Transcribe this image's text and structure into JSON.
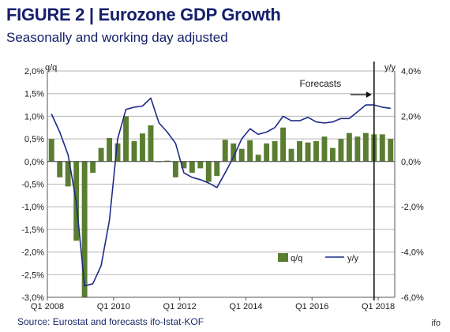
{
  "header": {
    "title": "FIGURE 2 | Eurozone GDP Growth",
    "subtitle": "Seasonally and working day adjusted"
  },
  "footer": {
    "source": "Source: Eurostat and forecasts ifo-Istat-KOF",
    "credit": "ifo"
  },
  "chart_data": {
    "type": "bar",
    "title": "FIGURE 2 | Eurozone GDP Growth",
    "subtitle": "Seasonally and working day adjusted",
    "left_axis_label": "q/q",
    "right_axis_label": "y/y",
    "left_ylim": [
      -3.0,
      2.0
    ],
    "right_ylim": [
      -6.0,
      4.0
    ],
    "left_ticks": [
      "2,0%",
      "1,5%",
      "1,0%",
      "0,5%",
      "0,0%",
      "-0,5%",
      "-1,0%",
      "-1,5%",
      "-2,0%",
      "-2,5%",
      "-3,0%"
    ],
    "right_ticks": [
      "4,0%",
      "2,0%",
      "0,0%",
      "-2,0%",
      "-4,0%",
      "-6,0%"
    ],
    "x_tick_labels": [
      "Q1 2008",
      "Q1 2010",
      "Q1 2012",
      "Q1 2014",
      "Q1 2016",
      "Q1 2018"
    ],
    "x_tick_positions": [
      0,
      8,
      16,
      24,
      32,
      40
    ],
    "grid": true,
    "legend_position": "bottom-right",
    "annotation": "Forecasts",
    "forecast_start_index": 39.5,
    "series": [
      {
        "name": "q/q",
        "kind": "bar",
        "axis": "left",
        "color": "#5a7d32",
        "values": [
          0.5,
          -0.35,
          -0.55,
          -1.75,
          -3.0,
          -0.25,
          0.3,
          0.52,
          0.4,
          1.0,
          0.45,
          0.62,
          0.8,
          0.0,
          0.02,
          -0.35,
          -0.15,
          -0.25,
          -0.15,
          -0.45,
          -0.32,
          0.48,
          0.4,
          0.28,
          0.47,
          0.15,
          0.4,
          0.45,
          0.75,
          0.28,
          0.45,
          0.42,
          0.45,
          0.55,
          0.3,
          0.5,
          0.63,
          0.55,
          0.63,
          0.6,
          0.6,
          0.5
        ]
      },
      {
        "name": "y/y",
        "kind": "line",
        "axis": "right",
        "color": "#1f2a88",
        "values": [
          2.1,
          1.3,
          0.3,
          -1.8,
          -5.5,
          -5.4,
          -4.6,
          -2.6,
          1.0,
          2.3,
          2.4,
          2.45,
          2.8,
          1.7,
          1.3,
          0.8,
          -0.5,
          -0.7,
          -0.8,
          -0.95,
          -1.15,
          -0.5,
          0.2,
          1.0,
          1.45,
          1.2,
          1.3,
          1.5,
          2.0,
          1.8,
          1.8,
          1.95,
          1.75,
          1.7,
          1.75,
          1.9,
          1.9,
          2.2,
          2.5,
          2.5,
          2.4,
          2.35
        ]
      }
    ]
  }
}
